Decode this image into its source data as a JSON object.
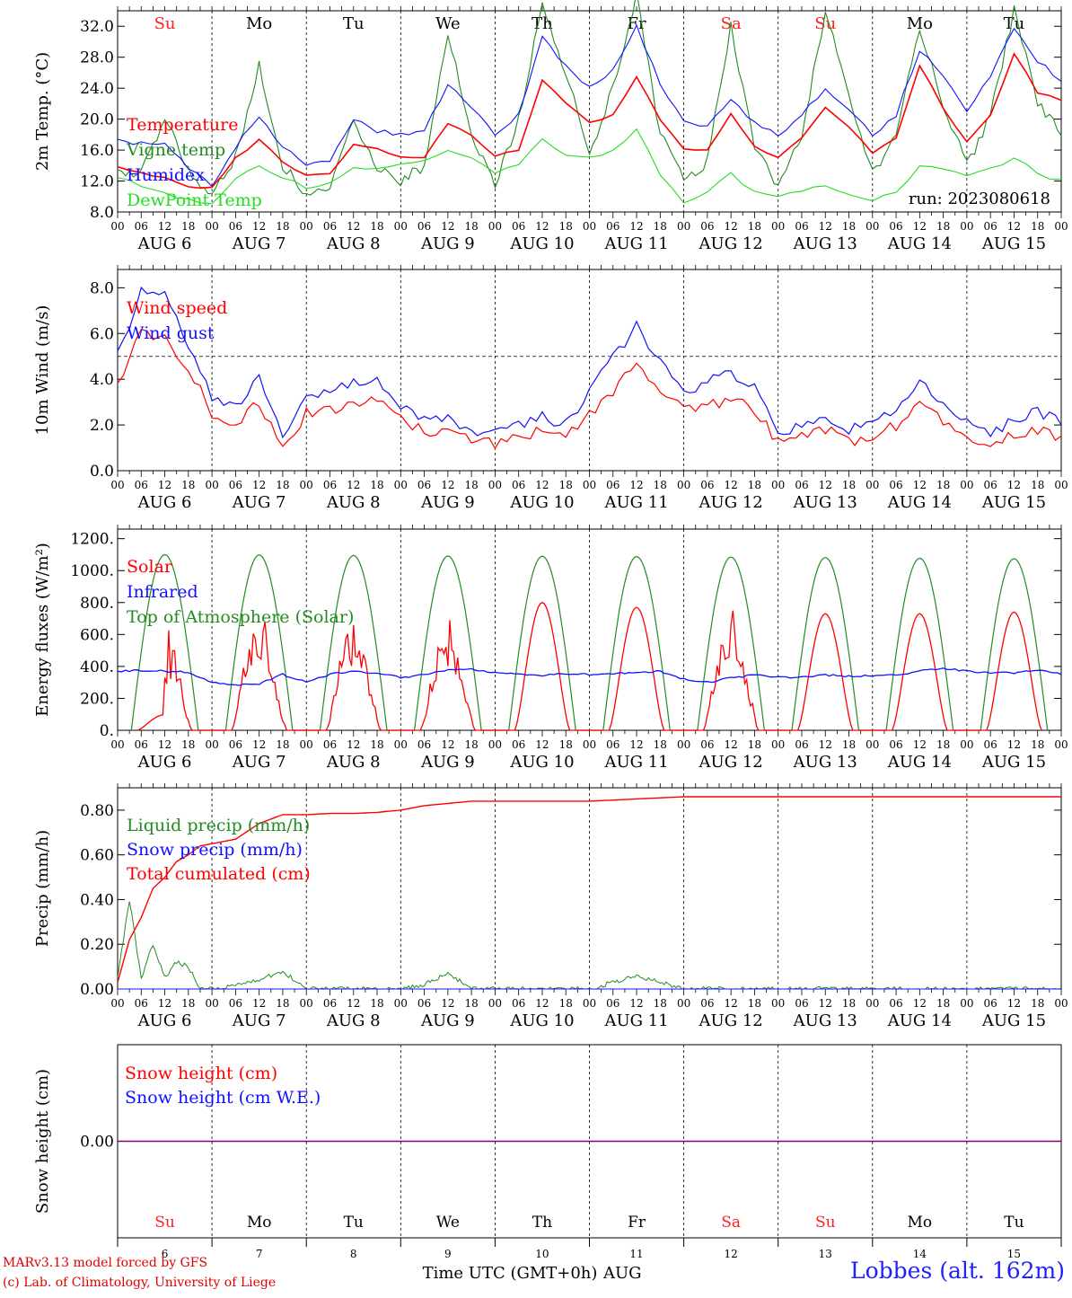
{
  "colors": {
    "red": "#ff0000",
    "green": "#228b22",
    "blue": "#1010ff",
    "lightgreen": "#22dd22",
    "purple": "#800080",
    "black": "#000000",
    "weekend": "#ff2020"
  },
  "footer": {
    "credit1": "MARv3.13 model forced by GFS",
    "credit2": "(c) Lab. of Climatology, University of Liege",
    "time_label": "Time UTC (GMT+0h)",
    "month": "AUG",
    "station": "Lobbes (alt. 162m)"
  },
  "chart_data": [
    {
      "id": "temp",
      "type": "line",
      "ylabel": "2m Temp. (°C)",
      "ylim": [
        8,
        34
      ],
      "yticks": [
        "8.0",
        "12.0",
        "16.0",
        "20.0",
        "24.0",
        "28.0",
        "32.0"
      ],
      "annotation": "run: 2023080618",
      "weekdays": [
        "Su",
        "Mo",
        "Tu",
        "We",
        "Th",
        "Fr",
        "Sa",
        "Su",
        "Mo",
        "Tu"
      ],
      "weekend_flags": [
        true,
        false,
        false,
        false,
        false,
        false,
        true,
        true,
        false,
        false
      ],
      "days": [
        "AUG  6",
        "AUG  7",
        "AUG  8",
        "AUG  9",
        "AUG 10",
        "AUG 11",
        "AUG 12",
        "AUG 13",
        "AUG 14",
        "AUG 15"
      ],
      "hour_labels": [
        "00",
        "06",
        "12",
        "18"
      ],
      "x_hours": [
        0,
        6,
        12,
        18,
        24,
        30,
        36,
        42,
        48,
        54,
        60,
        66,
        72,
        78,
        84,
        90,
        96,
        102,
        108,
        114,
        120,
        126,
        132,
        138,
        144,
        150,
        156,
        162,
        168,
        174,
        180,
        186,
        192,
        198,
        204,
        210,
        216,
        222,
        228,
        234,
        240
      ],
      "series": [
        {
          "name": "Temperature",
          "color": "red",
          "values": [
            14.0,
            13.0,
            12.5,
            11.2,
            11.2,
            15.0,
            17.3,
            14.5,
            12.7,
            13.0,
            16.8,
            16.2,
            15.0,
            15.0,
            19.5,
            17.8,
            15.2,
            16.0,
            25.0,
            22.0,
            19.5,
            20.5,
            25.5,
            20.0,
            16.0,
            16.0,
            20.8,
            16.5,
            15.0,
            17.5,
            21.5,
            19.0,
            15.5,
            17.5,
            27.0,
            21.5,
            17.0,
            20.5,
            28.5,
            23.5,
            22.5
          ]
        },
        {
          "name": "Vigne temp",
          "color": "green",
          "values": [
            13.0,
            13.2,
            20.0,
            13.5,
            10.0,
            15.0,
            27.0,
            14.0,
            10.5,
            11.5,
            20.0,
            14.0,
            12.0,
            14.0,
            31.5,
            18.0,
            11.5,
            20.0,
            35.0,
            26.0,
            15.5,
            24.0,
            36.0,
            18.0,
            12.0,
            14.5,
            32.0,
            16.0,
            11.5,
            18.0,
            34.0,
            23.0,
            13.0,
            17.5,
            32.0,
            22.0,
            14.0,
            20.5,
            34.0,
            22.0,
            18.5
          ]
        },
        {
          "name": "Humidex",
          "color": "blue",
          "values": [
            17.3,
            16.8,
            17.0,
            13.5,
            11.5,
            16.5,
            20.5,
            16.5,
            14.0,
            14.5,
            20.0,
            18.5,
            18.0,
            18.5,
            24.5,
            21.5,
            18.0,
            20.5,
            30.5,
            27.0,
            24.0,
            26.5,
            32.0,
            24.5,
            19.5,
            19.0,
            22.5,
            19.5,
            18.0,
            20.5,
            24.0,
            21.5,
            18.0,
            20.5,
            29.0,
            25.5,
            21.0,
            25.5,
            32.0,
            27.5,
            25.0
          ]
        },
        {
          "name": "DewPoint Temp",
          "color": "lightgreen",
          "values": [
            12.5,
            11.5,
            10.5,
            9.5,
            9.0,
            12.5,
            14.0,
            12.5,
            11.0,
            12.0,
            13.5,
            13.5,
            14.0,
            14.5,
            16.0,
            15.0,
            13.0,
            14.0,
            17.5,
            15.5,
            15.0,
            16.0,
            18.5,
            13.0,
            9.0,
            10.5,
            13.0,
            10.5,
            10.0,
            10.5,
            11.5,
            10.5,
            9.5,
            10.5,
            14.0,
            13.5,
            12.5,
            13.5,
            15.0,
            13.0,
            12.0
          ]
        }
      ]
    },
    {
      "id": "wind",
      "type": "line",
      "ylabel": "10m Wind (m/s)",
      "ylim": [
        0,
        8.8
      ],
      "yticks": [
        "0.0",
        "2.0",
        "4.0",
        "6.0",
        "8.0"
      ],
      "ref_line": 5.0,
      "days": [
        "AUG  6",
        "AUG  7",
        "AUG  8",
        "AUG  9",
        "AUG 10",
        "AUG 11",
        "AUG 12",
        "AUG 13",
        "AUG 14",
        "AUG 15"
      ],
      "hour_labels": [
        "00",
        "06",
        "12",
        "18"
      ],
      "x_hours": [
        0,
        6,
        12,
        18,
        24,
        30,
        36,
        42,
        48,
        54,
        60,
        66,
        72,
        78,
        84,
        90,
        96,
        102,
        108,
        114,
        120,
        126,
        132,
        138,
        144,
        150,
        156,
        162,
        168,
        174,
        180,
        186,
        192,
        198,
        204,
        210,
        216,
        222,
        228,
        234,
        240
      ],
      "series": [
        {
          "name": "Wind speed",
          "color": "red",
          "values": [
            3.8,
            6.0,
            5.8,
            4.5,
            2.5,
            2.0,
            3.0,
            1.0,
            2.5,
            2.6,
            3.0,
            3.2,
            2.2,
            1.7,
            1.6,
            1.3,
            1.2,
            1.4,
            1.8,
            1.4,
            2.5,
            3.5,
            4.8,
            3.5,
            2.6,
            2.8,
            3.2,
            2.7,
            1.2,
            1.5,
            1.8,
            1.3,
            1.5,
            2.0,
            2.8,
            2.2,
            1.5,
            1.2,
            1.6,
            1.8,
            1.5
          ]
        },
        {
          "name": "Wind gust",
          "color": "blue",
          "values": [
            5.0,
            7.8,
            7.6,
            5.5,
            3.2,
            2.8,
            4.0,
            1.5,
            3.2,
            3.4,
            3.9,
            3.9,
            2.9,
            2.2,
            2.3,
            1.6,
            1.6,
            2.0,
            2.4,
            2.0,
            3.5,
            5.0,
            6.3,
            4.8,
            3.3,
            4.0,
            4.2,
            3.6,
            1.6,
            2.0,
            2.4,
            1.8,
            2.0,
            2.8,
            3.8,
            3.0,
            2.1,
            1.6,
            2.2,
            2.6,
            2.2
          ]
        }
      ]
    },
    {
      "id": "energy",
      "type": "line",
      "ylabel": "Energy fluxes (W/m²)",
      "ylim": [
        0,
        1260
      ],
      "yticks": [
        "0.",
        "200.",
        "400.",
        "600.",
        "800.",
        "1000.",
        "1200."
      ],
      "days": [
        "AUG  6",
        "AUG  7",
        "AUG  8",
        "AUG  9",
        "AUG 10",
        "AUG 11",
        "AUG 12",
        "AUG 13",
        "AUG 14",
        "AUG 15"
      ],
      "hour_labels": [
        "00",
        "06",
        "12",
        "18"
      ],
      "daily_toa_peak": [
        1100,
        1098,
        1095,
        1092,
        1090,
        1088,
        1085,
        1082,
        1078,
        1075
      ],
      "daily_solar_peak": [
        650,
        780,
        720,
        720,
        800,
        770,
        800,
        730,
        730,
        740
      ],
      "series": [
        {
          "name": "Solar",
          "color": "red",
          "values": "daily_solar_peak"
        },
        {
          "name": "Infrared",
          "color": "blue",
          "values": [
            370,
            375,
            370,
            365,
            300,
            285,
            290,
            350,
            300,
            350,
            370,
            360,
            330,
            350,
            380,
            385,
            360,
            350,
            345,
            355,
            350,
            355,
            360,
            370,
            320,
            300,
            330,
            345,
            335,
            330,
            345,
            340,
            340,
            345,
            370,
            390,
            370,
            360,
            360,
            380,
            350
          ]
        },
        {
          "name": "Top of Atmosphere (Solar)",
          "color": "green",
          "values": "daily_toa_peak"
        }
      ]
    },
    {
      "id": "precip",
      "type": "line",
      "ylabel": "Precip (mm/h)",
      "ylim": [
        0,
        0.9
      ],
      "yticks": [
        "0.00",
        "0.20",
        "0.40",
        "0.60",
        "0.80"
      ],
      "days": [
        "AUG  6",
        "AUG  7",
        "AUG  8",
        "AUG  9",
        "AUG 10",
        "AUG 11",
        "AUG 12",
        "AUG 13",
        "AUG 14",
        "AUG 15"
      ],
      "hour_labels": [
        "00",
        "06",
        "12",
        "18"
      ],
      "x_hours": [
        0,
        3,
        6,
        9,
        12,
        15,
        18,
        21,
        24,
        30,
        36,
        42,
        48,
        54,
        60,
        66,
        72,
        78,
        84,
        90,
        96,
        108,
        120,
        132,
        144,
        156,
        168,
        180,
        192,
        204,
        216,
        228,
        240
      ],
      "series": [
        {
          "name": "Liquid precip (mm/h)",
          "color": "green",
          "values": [
            0.05,
            0.4,
            0.05,
            0.2,
            0.05,
            0.12,
            0.1,
            0.0,
            0.0,
            0.02,
            0.04,
            0.08,
            0.0,
            0.0,
            0.0,
            0.0,
            0.0,
            0.02,
            0.07,
            0.0,
            0.0,
            0.0,
            0.0,
            0.06,
            0.0,
            0.0,
            0.0,
            0.0,
            0.0,
            0.0,
            0.0,
            0.0,
            0.0
          ]
        },
        {
          "name": "Snow precip (mm/h)",
          "color": "blue",
          "values": [
            0,
            0,
            0,
            0,
            0,
            0,
            0,
            0,
            0,
            0,
            0,
            0,
            0,
            0,
            0,
            0,
            0,
            0,
            0,
            0,
            0,
            0,
            0,
            0,
            0,
            0,
            0,
            0,
            0,
            0,
            0,
            0,
            0
          ]
        },
        {
          "name": "Total cumulated (cm)",
          "color": "red",
          "values": [
            0.03,
            0.22,
            0.32,
            0.45,
            0.5,
            0.57,
            0.6,
            0.64,
            0.65,
            0.67,
            0.74,
            0.78,
            0.78,
            0.785,
            0.785,
            0.79,
            0.8,
            0.82,
            0.83,
            0.84,
            0.84,
            0.84,
            0.84,
            0.85,
            0.86,
            0.86,
            0.86,
            0.86,
            0.86,
            0.86,
            0.86,
            0.86,
            0.86
          ]
        }
      ]
    },
    {
      "id": "snow",
      "type": "line",
      "ylabel": "Snow height (cm)",
      "ylim": [
        -1,
        1
      ],
      "yticks": [
        "0.00"
      ],
      "days": [
        "6",
        "7",
        "8",
        "9",
        "10",
        "11",
        "12",
        "13",
        "14",
        "15"
      ],
      "weekdays": [
        "Su",
        "Mo",
        "Tu",
        "We",
        "Th",
        "Fr",
        "Sa",
        "Su",
        "Mo",
        "Tu"
      ],
      "weekend_flags": [
        true,
        false,
        false,
        false,
        false,
        false,
        true,
        true,
        false,
        false
      ],
      "series": [
        {
          "name": "Snow height (cm)",
          "color": "red",
          "values": [
            0,
            0
          ]
        },
        {
          "name": "Snow height (cm W.E.)",
          "color": "blue",
          "values": [
            0,
            0
          ]
        }
      ]
    }
  ]
}
